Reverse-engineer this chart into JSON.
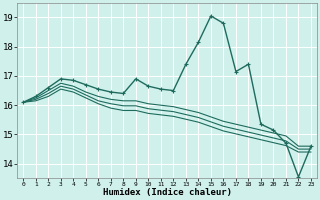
{
  "bg_color": "#cff0eb",
  "grid_color": "#ffffff",
  "line_color": "#1e6b5e",
  "xlabel": "Humidex (Indice chaleur)",
  "xlim": [
    -0.5,
    23.5
  ],
  "ylim": [
    13.5,
    19.5
  ],
  "yticks": [
    14,
    15,
    16,
    17,
    18,
    19
  ],
  "xticks": [
    0,
    1,
    2,
    3,
    4,
    5,
    6,
    7,
    8,
    9,
    10,
    11,
    12,
    13,
    14,
    15,
    16,
    17,
    18,
    19,
    20,
    21,
    22,
    23
  ],
  "series": [
    {
      "x": [
        0,
        1,
        2,
        3,
        4,
        5,
        6,
        7,
        8,
        9,
        10,
        11,
        12,
        13,
        14,
        15,
        16,
        17,
        18,
        19,
        20,
        21,
        22,
        23
      ],
      "y": [
        16.1,
        16.3,
        16.6,
        16.9,
        16.85,
        16.7,
        16.55,
        16.45,
        16.4,
        16.9,
        16.65,
        16.55,
        16.5,
        17.4,
        18.15,
        19.05,
        18.8,
        17.15,
        17.4,
        15.35,
        15.15,
        14.7,
        13.55,
        14.6
      ],
      "marker": "+",
      "lw": 1.0,
      "ms": 3.0
    },
    {
      "x": [
        0,
        1,
        2,
        3,
        4,
        5,
        6,
        7,
        8,
        9,
        10,
        11,
        12,
        13,
        14,
        15,
        16,
        17,
        18,
        19,
        20,
        21,
        22,
        23
      ],
      "y": [
        16.1,
        16.25,
        16.5,
        16.75,
        16.65,
        16.45,
        16.3,
        16.2,
        16.15,
        16.15,
        16.05,
        16.0,
        15.95,
        15.85,
        15.75,
        15.6,
        15.45,
        15.35,
        15.25,
        15.15,
        15.05,
        14.95,
        14.6,
        14.6
      ],
      "marker": "None",
      "lw": 0.8,
      "ms": 0
    },
    {
      "x": [
        0,
        1,
        2,
        3,
        4,
        5,
        6,
        7,
        8,
        9,
        10,
        11,
        12,
        13,
        14,
        15,
        16,
        17,
        18,
        19,
        20,
        21,
        22,
        23
      ],
      "y": [
        16.1,
        16.2,
        16.4,
        16.65,
        16.55,
        16.35,
        16.15,
        16.05,
        15.98,
        15.98,
        15.88,
        15.83,
        15.78,
        15.68,
        15.58,
        15.43,
        15.28,
        15.18,
        15.08,
        14.98,
        14.88,
        14.78,
        14.5,
        14.5
      ],
      "marker": "None",
      "lw": 0.8,
      "ms": 0
    },
    {
      "x": [
        0,
        1,
        2,
        3,
        4,
        5,
        6,
        7,
        8,
        9,
        10,
        11,
        12,
        13,
        14,
        15,
        16,
        17,
        18,
        19,
        20,
        21,
        22,
        23
      ],
      "y": [
        16.1,
        16.15,
        16.3,
        16.55,
        16.45,
        16.25,
        16.05,
        15.9,
        15.82,
        15.82,
        15.72,
        15.67,
        15.62,
        15.52,
        15.42,
        15.27,
        15.12,
        15.02,
        14.92,
        14.82,
        14.72,
        14.62,
        14.4,
        14.4
      ],
      "marker": "None",
      "lw": 0.8,
      "ms": 0
    }
  ]
}
